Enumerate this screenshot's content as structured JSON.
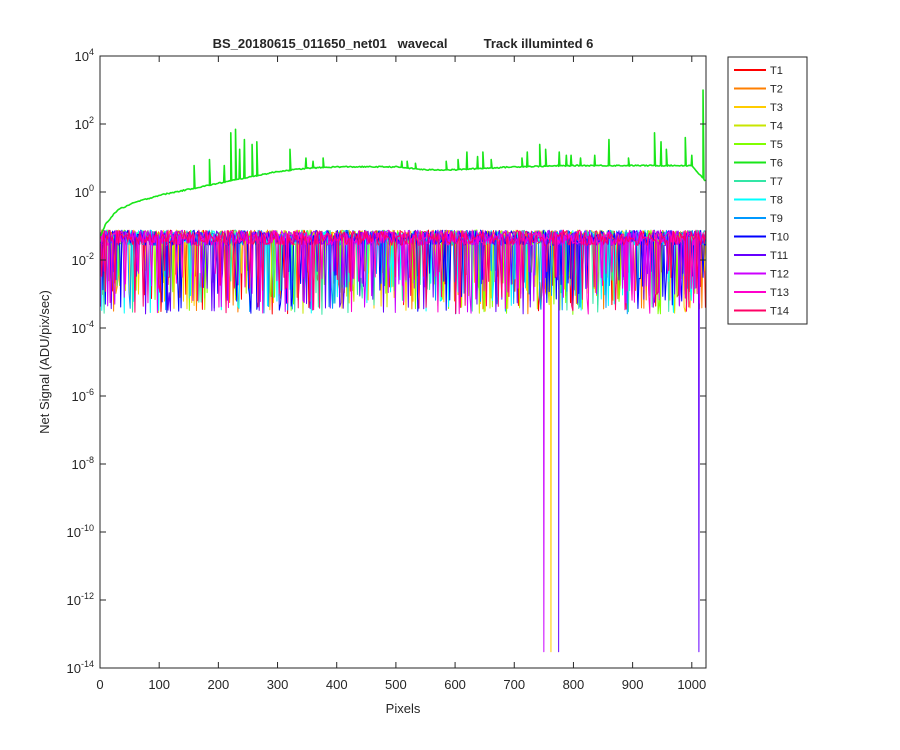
{
  "chart_data": {
    "type": "line",
    "title": "BS_20180615_011650_net01   wavecal          Track illuminted 6",
    "xlabel": "Pixels",
    "ylabel": "Net Signal (ADU/pix/sec)",
    "xlim": [
      0,
      1024
    ],
    "ylim": [
      1e-14,
      10000
    ],
    "yscale": "log",
    "xticks": [
      0,
      100,
      200,
      300,
      400,
      500,
      600,
      700,
      800,
      900,
      1000
    ],
    "yticks": [
      {
        "base": "10",
        "exp": "-14",
        "value": 1e-14
      },
      {
        "base": "10",
        "exp": "-12",
        "value": 1e-12
      },
      {
        "base": "10",
        "exp": "-10",
        "value": 1e-10
      },
      {
        "base": "10",
        "exp": "-8",
        "value": 1e-08
      },
      {
        "base": "10",
        "exp": "-6",
        "value": 1e-06
      },
      {
        "base": "10",
        "exp": "-4",
        "value": 0.0001
      },
      {
        "base": "10",
        "exp": "-2",
        "value": 0.01
      },
      {
        "base": "10",
        "exp": "0",
        "value": 1
      },
      {
        "base": "10",
        "exp": "2",
        "value": 100
      },
      {
        "base": "10",
        "exp": "4",
        "value": 10000
      }
    ],
    "grid": false,
    "legend_position": "outside-top-right",
    "series": [
      {
        "name": "T1",
        "color": "#ff0000",
        "level": 0.05,
        "noise": true
      },
      {
        "name": "T2",
        "color": "#ff7f00",
        "level": 0.05,
        "noise": true
      },
      {
        "name": "T3",
        "color": "#ffcc00",
        "level": 0.05,
        "noise": true,
        "dips": [
          {
            "x": 762,
            "y": 3e-14
          }
        ]
      },
      {
        "name": "T4",
        "color": "#c8e600",
        "level": 0.05,
        "noise": true
      },
      {
        "name": "T5",
        "color": "#80ff00",
        "level": 0.05,
        "noise": true
      },
      {
        "name": "T6",
        "color": "#19e619",
        "illuminated": true,
        "profile": [
          {
            "x": 1,
            "y": 0.05
          },
          {
            "x": 10,
            "y": 0.12
          },
          {
            "x": 30,
            "y": 0.3
          },
          {
            "x": 60,
            "y": 0.5
          },
          {
            "x": 100,
            "y": 0.8
          },
          {
            "x": 150,
            "y": 1.2
          },
          {
            "x": 200,
            "y": 1.8
          },
          {
            "x": 240,
            "y": 2.5
          },
          {
            "x": 300,
            "y": 4
          },
          {
            "x": 350,
            "y": 5
          },
          {
            "x": 400,
            "y": 5.5
          },
          {
            "x": 500,
            "y": 5.5
          },
          {
            "x": 550,
            "y": 4.5
          },
          {
            "x": 600,
            "y": 4.5
          },
          {
            "x": 650,
            "y": 5
          },
          {
            "x": 700,
            "y": 5.5
          },
          {
            "x": 800,
            "y": 6
          },
          {
            "x": 900,
            "y": 6
          },
          {
            "x": 1000,
            "y": 6
          },
          {
            "x": 1015,
            "y": 3
          },
          {
            "x": 1024,
            "y": 2
          }
        ],
        "peaks": [
          {
            "x": 159,
            "y": 6
          },
          {
            "x": 185,
            "y": 9
          },
          {
            "x": 210,
            "y": 6
          },
          {
            "x": 221,
            "y": 55
          },
          {
            "x": 229,
            "y": 70
          },
          {
            "x": 236,
            "y": 18
          },
          {
            "x": 244,
            "y": 35
          },
          {
            "x": 257,
            "y": 25
          },
          {
            "x": 265,
            "y": 30
          },
          {
            "x": 321,
            "y": 18
          },
          {
            "x": 348,
            "y": 10
          },
          {
            "x": 360,
            "y": 8
          },
          {
            "x": 377,
            "y": 10
          },
          {
            "x": 510,
            "y": 8
          },
          {
            "x": 519,
            "y": 8
          },
          {
            "x": 533,
            "y": 7
          },
          {
            "x": 585,
            "y": 8
          },
          {
            "x": 605,
            "y": 9
          },
          {
            "x": 620,
            "y": 15
          },
          {
            "x": 638,
            "y": 11
          },
          {
            "x": 647,
            "y": 15
          },
          {
            "x": 661,
            "y": 9
          },
          {
            "x": 713,
            "y": 10
          },
          {
            "x": 722,
            "y": 15
          },
          {
            "x": 743,
            "y": 25
          },
          {
            "x": 753,
            "y": 18
          },
          {
            "x": 776,
            "y": 15
          },
          {
            "x": 788,
            "y": 12
          },
          {
            "x": 796,
            "y": 12
          },
          {
            "x": 812,
            "y": 10
          },
          {
            "x": 836,
            "y": 12
          },
          {
            "x": 860,
            "y": 35
          },
          {
            "x": 893,
            "y": 10
          },
          {
            "x": 937,
            "y": 55
          },
          {
            "x": 948,
            "y": 30
          },
          {
            "x": 957,
            "y": 18
          },
          {
            "x": 989,
            "y": 40
          },
          {
            "x": 1000,
            "y": 12
          },
          {
            "x": 1019,
            "y": 1000
          }
        ]
      },
      {
        "name": "T7",
        "color": "#33e6a6",
        "level": 0.05,
        "noise": true
      },
      {
        "name": "T8",
        "color": "#00ffff",
        "level": 0.05,
        "noise": true
      },
      {
        "name": "T9",
        "color": "#0099ff",
        "level": 0.05,
        "noise": true
      },
      {
        "name": "T10",
        "color": "#0000ff",
        "level": 0.05,
        "noise": true
      },
      {
        "name": "T11",
        "color": "#6600ff",
        "level": 0.05,
        "noise": true,
        "dips": [
          {
            "x": 775,
            "y": 3e-14
          },
          {
            "x": 1012,
            "y": 3e-14
          }
        ]
      },
      {
        "name": "T12",
        "color": "#cc00ff",
        "level": 0.05,
        "noise": true,
        "dips": [
          {
            "x": 750,
            "y": 3e-14
          }
        ]
      },
      {
        "name": "T13",
        "color": "#ff00cc",
        "level": 0.05,
        "noise": true
      },
      {
        "name": "T14",
        "color": "#ff0066",
        "level": 0.05,
        "noise": true
      }
    ]
  }
}
